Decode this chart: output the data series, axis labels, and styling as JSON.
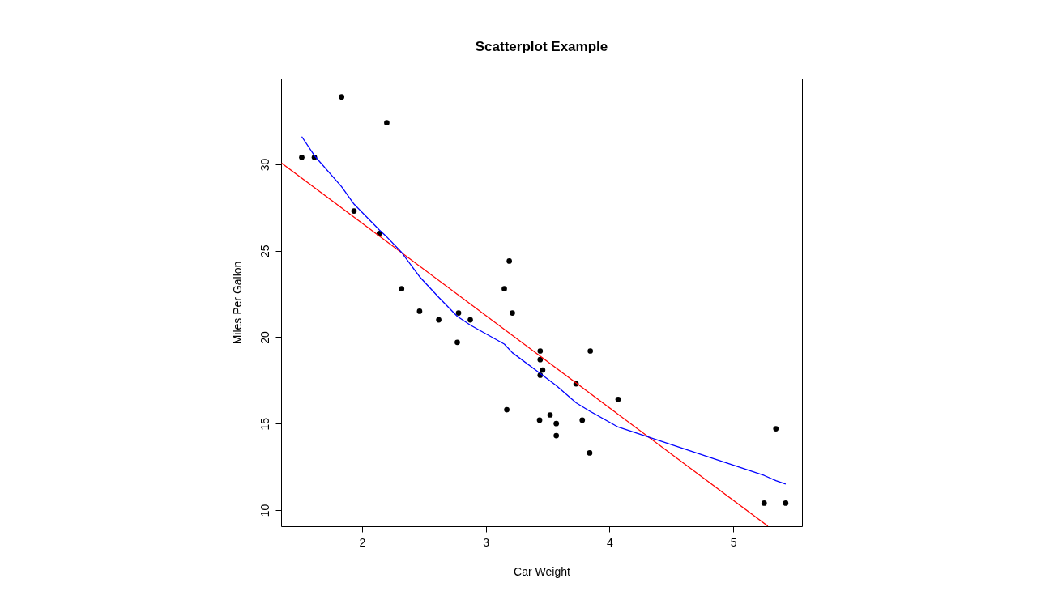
{
  "chart_data": {
    "type": "scatter",
    "title": "Scatterplot Example",
    "xlabel": "Car Weight",
    "ylabel": "Miles Per Gallon",
    "xlim": [
      1.346,
      5.556
    ],
    "ylim": [
      9.06,
      34.96
    ],
    "xticks": [
      2,
      3,
      4,
      5
    ],
    "yticks": [
      10,
      15,
      20,
      25,
      30
    ],
    "grid": false,
    "series": [
      {
        "marker": "circle",
        "color": "#000000",
        "x": [
          2.62,
          2.875,
          2.32,
          3.215,
          3.44,
          3.46,
          3.57,
          3.19,
          3.15,
          3.44,
          3.44,
          4.07,
          3.73,
          3.78,
          5.25,
          5.424,
          5.345,
          2.2,
          1.615,
          1.835,
          2.465,
          3.52,
          3.435,
          3.84,
          3.845,
          1.935,
          2.14,
          1.513,
          3.17,
          2.77,
          3.57,
          2.78
        ],
        "values": [
          21.0,
          21.0,
          22.8,
          21.4,
          18.7,
          18.1,
          14.3,
          24.4,
          22.8,
          19.2,
          17.8,
          16.4,
          17.3,
          15.2,
          10.4,
          10.4,
          14.7,
          32.4,
          30.4,
          33.9,
          21.5,
          15.5,
          15.2,
          13.3,
          19.2,
          27.3,
          26.0,
          30.4,
          15.8,
          19.7,
          15.0,
          21.4
        ]
      },
      {
        "type": "line",
        "color": "#ff0000",
        "line_style": "solid",
        "x": [
          1.35,
          5.28
        ],
        "values": [
          30.07,
          9.07
        ]
      },
      {
        "type": "line",
        "color": "#0000ff",
        "line_style": "solid",
        "x": [
          1.513,
          1.615,
          1.835,
          1.935,
          2.14,
          2.2,
          2.32,
          2.465,
          2.62,
          2.77,
          2.875,
          3.15,
          3.215,
          3.44,
          3.57,
          3.73,
          3.845,
          4.07,
          5.25,
          5.345,
          5.424
        ],
        "values": [
          31.6,
          30.5,
          28.7,
          27.7,
          26.2,
          25.8,
          24.9,
          23.5,
          22.3,
          21.2,
          20.7,
          19.6,
          19.1,
          17.9,
          17.2,
          16.2,
          15.7,
          14.8,
          12.0,
          11.7,
          11.5
        ]
      }
    ]
  }
}
